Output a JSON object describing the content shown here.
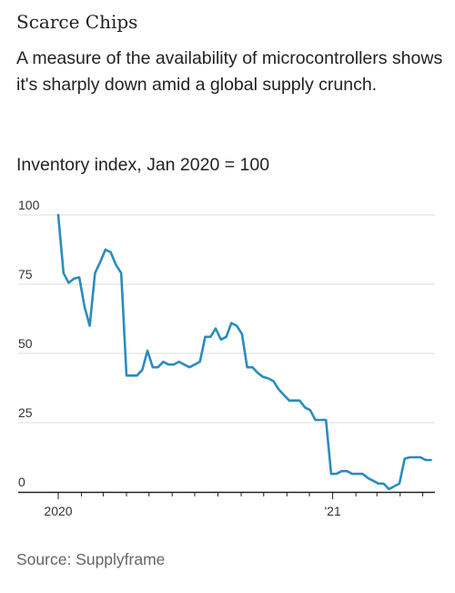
{
  "header": {
    "title": "Scarce Chips",
    "subtitle": "A measure of the availability of microcontrollers shows it's sharply down amid a global supply crunch.",
    "unit_label": "Inventory index, Jan 2020 = 100"
  },
  "footer": {
    "source": "Source: Supplyframe"
  },
  "colors": {
    "line": "#2b8cbe",
    "grid": "#dddddd",
    "axis": "#222222"
  },
  "chart_data": {
    "type": "line",
    "title": "Scarce Chips",
    "subtitle": "A measure of the availability of microcontrollers shows it's sharply down amid a global supply crunch.",
    "ylabel": "Inventory index, Jan 2020 = 100",
    "xlabel": "",
    "ylim": [
      0,
      100
    ],
    "y_ticks": [
      0,
      25,
      50,
      75,
      100
    ],
    "y_tick_labels": [
      "0",
      "25",
      "50",
      "75",
      "100"
    ],
    "x_range": [
      "2020-01-01",
      "2021-05-15"
    ],
    "x_ticks": [
      {
        "date": "2020-01-01",
        "label": "2020"
      },
      {
        "date": "2021-01-01",
        "label": "'21"
      }
    ],
    "grid": true,
    "legend": "none",
    "series": [
      {
        "x": [
          "2020-01-01",
          "2020-01-08",
          "2020-01-15",
          "2020-01-22",
          "2020-01-29",
          "2020-02-05",
          "2020-02-12",
          "2020-02-19",
          "2020-02-26",
          "2020-03-04",
          "2020-03-11",
          "2020-03-18",
          "2020-03-25",
          "2020-04-01",
          "2020-04-08",
          "2020-04-15",
          "2020-04-22",
          "2020-04-29",
          "2020-05-06",
          "2020-05-13",
          "2020-05-20",
          "2020-05-27",
          "2020-06-03",
          "2020-06-10",
          "2020-06-17",
          "2020-06-24",
          "2020-07-01",
          "2020-07-08",
          "2020-07-15",
          "2020-07-22",
          "2020-07-29",
          "2020-08-05",
          "2020-08-12",
          "2020-08-19",
          "2020-08-26",
          "2020-09-02",
          "2020-09-09",
          "2020-09-16",
          "2020-09-23",
          "2020-09-30",
          "2020-10-07",
          "2020-10-14",
          "2020-10-21",
          "2020-10-28",
          "2020-11-04",
          "2020-11-11",
          "2020-11-18",
          "2020-11-25",
          "2020-12-02",
          "2020-12-09",
          "2020-12-16",
          "2020-12-23",
          "2020-12-30",
          "2021-01-06",
          "2021-01-13",
          "2021-01-20",
          "2021-01-27",
          "2021-02-03",
          "2021-02-10",
          "2021-02-17",
          "2021-02-24",
          "2021-03-03",
          "2021-03-10",
          "2021-03-17",
          "2021-03-24",
          "2021-03-31",
          "2021-04-07",
          "2021-04-14",
          "2021-04-21",
          "2021-04-28",
          "2021-05-05",
          "2021-05-12"
        ],
        "values": [
          100,
          79,
          75.5,
          77,
          77.5,
          67,
          60,
          79,
          83,
          87.5,
          86.5,
          82,
          79,
          42,
          42,
          42,
          44,
          51,
          45,
          45,
          47,
          46,
          46,
          47,
          46,
          45,
          46,
          47,
          56,
          56,
          59,
          55,
          56,
          61,
          60,
          57,
          45,
          45,
          43,
          41.5,
          41,
          40,
          37,
          35,
          33,
          33,
          33,
          30.5,
          29.5,
          26,
          26,
          26,
          6.5,
          6.5,
          7.5,
          7.5,
          6.5,
          6.5,
          6.5,
          5,
          4,
          3,
          3,
          1,
          2,
          3,
          12,
          12.5,
          12.5,
          12.5,
          11.5,
          11.5
        ]
      }
    ]
  }
}
